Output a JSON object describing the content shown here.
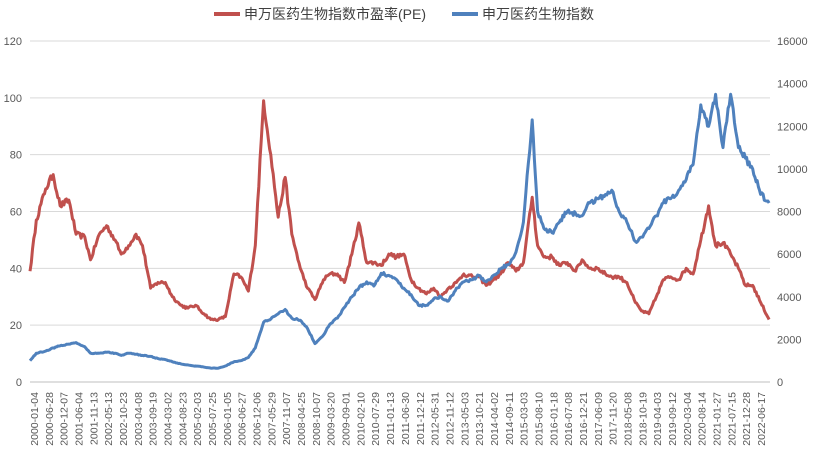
{
  "chart_data": {
    "type": "line",
    "title": "",
    "xlabel": "",
    "ylabel_left": "",
    "ylabel_right": "",
    "ylim_left": [
      0,
      120
    ],
    "yticks_left": [
      "0",
      "20",
      "40",
      "60",
      "80",
      "100",
      "120"
    ],
    "ylim_right": [
      0,
      16000
    ],
    "yticks_right": [
      "0",
      "2000",
      "4000",
      "6000",
      "8000",
      "10000",
      "12000",
      "14000",
      "16000"
    ],
    "grid": "horizontal",
    "legend_position": "top",
    "x_tick_labels": [
      "2000-01-04",
      "2000-06-28",
      "2000-12-07",
      "2001-06-04",
      "2001-11-13",
      "2002-05-13",
      "2002-10-23",
      "2003-04-08",
      "2003-09-19",
      "2004-03-02",
      "2004-08-23",
      "2005-02-03",
      "2005-07-25",
      "2006-01-05",
      "2006-06-27",
      "2006-12-06",
      "2007-05-29",
      "2007-11-07",
      "2008-04-25",
      "2008-10-07",
      "2009-03-20",
      "2009-09-01",
      "2010-02-10",
      "2010-07-29",
      "2011-01-13",
      "2011-06-30",
      "2011-12-12",
      "2012-05-31",
      "2012-11-12",
      "2013-05-03",
      "2013-10-21",
      "2014-04-02",
      "2014-09-11",
      "2015-03-03",
      "2015-08-10",
      "2016-01-18",
      "2016-07-08",
      "2016-12-21",
      "2017-06-09",
      "2017-11-20",
      "2018-05-08",
      "2018-10-19",
      "2019-04-03",
      "2019-09-12",
      "2020-03-04",
      "2020-08-14",
      "2021-01-27",
      "2021-07-15",
      "2021-12-28",
      "2022-06-17"
    ],
    "series": [
      {
        "name": "申万医药生物指数市盈率(PE)",
        "axis": "left",
        "color": "#C0504D",
        "x": [
          "2000-01-04",
          "2000-03-15",
          "2000-06-28",
          "2000-09-20",
          "2000-12-07",
          "2001-03-15",
          "2001-06-04",
          "2001-09-10",
          "2001-11-13",
          "2002-02-20",
          "2002-05-13",
          "2002-08-15",
          "2002-10-23",
          "2003-01-15",
          "2003-04-08",
          "2003-06-20",
          "2003-09-19",
          "2003-12-10",
          "2004-03-02",
          "2004-05-20",
          "2004-08-23",
          "2004-11-10",
          "2005-02-03",
          "2005-05-10",
          "2005-07-25",
          "2005-10-20",
          "2006-01-05",
          "2006-04-10",
          "2006-06-27",
          "2006-09-20",
          "2006-12-06",
          "2007-03-10",
          "2007-05-29",
          "2007-08-20",
          "2007-11-07",
          "2008-01-20",
          "2008-04-25",
          "2008-07-15",
          "2008-10-07",
          "2009-01-10",
          "2009-03-20",
          "2009-06-15",
          "2009-09-01",
          "2009-11-25",
          "2010-02-10",
          "2010-05-10",
          "2010-07-29",
          "2010-10-20",
          "2011-01-13",
          "2011-04-10",
          "2011-06-30",
          "2011-09-20",
          "2011-12-12",
          "2012-03-10",
          "2012-05-31",
          "2012-08-20",
          "2012-11-12",
          "2013-02-10",
          "2013-05-03",
          "2013-08-10",
          "2013-10-21",
          "2014-01-10",
          "2014-04-02",
          "2014-06-20",
          "2014-09-11",
          "2014-12-10",
          "2015-03-03",
          "2015-06-10",
          "2015-08-10",
          "2015-10-20",
          "2016-01-18",
          "2016-04-10",
          "2016-07-08",
          "2016-10-10",
          "2016-12-21",
          "2017-03-15",
          "2017-06-09",
          "2017-09-10",
          "2017-11-20",
          "2018-02-10",
          "2018-05-08",
          "2018-08-10",
          "2018-10-19",
          "2019-01-10",
          "2019-04-03",
          "2019-06-20",
          "2019-09-12",
          "2019-12-10",
          "2020-03-04",
          "2020-05-20",
          "2020-08-14",
          "2020-11-10",
          "2021-01-27",
          "2021-04-20",
          "2021-07-15",
          "2021-10-10",
          "2021-12-28",
          "2022-03-20",
          "2022-06-17",
          "2022-09-20"
        ],
        "values": [
          39,
          57,
          68,
          73,
          62,
          64,
          52,
          51,
          43,
          52,
          55,
          50,
          45,
          48,
          52,
          48,
          33,
          35,
          35,
          30,
          27,
          26,
          27,
          24,
          22,
          22,
          23,
          38,
          37,
          32,
          48,
          99,
          80,
          58,
          72,
          52,
          40,
          33,
          29,
          36,
          38,
          38,
          35,
          45,
          56,
          42,
          42,
          41,
          45,
          44,
          45,
          36,
          33,
          31,
          33,
          30,
          33,
          35,
          38,
          37,
          37,
          34,
          36,
          38,
          42,
          39,
          42,
          65,
          48,
          44,
          44,
          41,
          42,
          39,
          43,
          40,
          40,
          38,
          37,
          37,
          35,
          28,
          25,
          24,
          30,
          36,
          37,
          36,
          40,
          38,
          50,
          62,
          48,
          49,
          45,
          40,
          34,
          34,
          28,
          22
        ]
      },
      {
        "name": "申万医药生物指数",
        "axis": "right",
        "color": "#4F81BD",
        "x": [
          "2000-01-04",
          "2000-03-15",
          "2000-06-28",
          "2000-09-20",
          "2000-12-07",
          "2001-03-15",
          "2001-06-04",
          "2001-09-10",
          "2001-11-13",
          "2002-02-20",
          "2002-05-13",
          "2002-08-15",
          "2002-10-23",
          "2003-01-15",
          "2003-04-08",
          "2003-06-20",
          "2003-09-19",
          "2003-12-10",
          "2004-03-02",
          "2004-05-20",
          "2004-08-23",
          "2004-11-10",
          "2005-02-03",
          "2005-05-10",
          "2005-07-25",
          "2005-10-20",
          "2006-01-05",
          "2006-04-10",
          "2006-06-27",
          "2006-09-20",
          "2006-12-06",
          "2007-03-10",
          "2007-05-29",
          "2007-08-20",
          "2007-11-07",
          "2008-01-20",
          "2008-04-25",
          "2008-07-15",
          "2008-10-07",
          "2009-01-10",
          "2009-03-20",
          "2009-06-15",
          "2009-09-01",
          "2009-11-25",
          "2010-02-10",
          "2010-05-10",
          "2010-07-29",
          "2010-10-20",
          "2011-01-13",
          "2011-04-10",
          "2011-06-30",
          "2011-09-20",
          "2011-12-12",
          "2012-03-10",
          "2012-05-31",
          "2012-08-20",
          "2012-11-12",
          "2013-02-10",
          "2013-05-03",
          "2013-08-10",
          "2013-10-21",
          "2014-01-10",
          "2014-04-02",
          "2014-06-20",
          "2014-09-11",
          "2014-12-10",
          "2015-03-03",
          "2015-06-10",
          "2015-08-10",
          "2015-10-20",
          "2016-01-18",
          "2016-04-10",
          "2016-07-08",
          "2016-10-10",
          "2016-12-21",
          "2017-03-15",
          "2017-06-09",
          "2017-09-10",
          "2017-11-20",
          "2018-02-10",
          "2018-05-08",
          "2018-08-10",
          "2018-10-19",
          "2019-01-10",
          "2019-04-03",
          "2019-06-20",
          "2019-09-12",
          "2019-12-10",
          "2020-03-04",
          "2020-05-20",
          "2020-08-14",
          "2020-11-10",
          "2021-01-27",
          "2021-04-20",
          "2021-07-15",
          "2021-10-10",
          "2021-12-28",
          "2022-03-20",
          "2022-06-17",
          "2022-09-20"
        ],
        "values": [
          1000,
          1350,
          1450,
          1600,
          1700,
          1780,
          1850,
          1650,
          1350,
          1350,
          1400,
          1350,
          1250,
          1350,
          1300,
          1250,
          1200,
          1100,
          1050,
          950,
          850,
          800,
          750,
          700,
          650,
          650,
          750,
          950,
          1000,
          1150,
          1600,
          2800,
          2950,
          3200,
          3400,
          3000,
          2900,
          2500,
          1800,
          2200,
          2700,
          3000,
          3500,
          4000,
          4400,
          4700,
          4500,
          5100,
          5000,
          4800,
          4400,
          4100,
          3600,
          3600,
          3900,
          4000,
          3800,
          4400,
          4700,
          4800,
          5000,
          4700,
          5000,
          5300,
          5500,
          6100,
          7500,
          12300,
          8000,
          7200,
          7000,
          7500,
          8000,
          7900,
          7800,
          8400,
          8600,
          8800,
          9000,
          8000,
          7500,
          6600,
          6800,
          7200,
          7800,
          8400,
          8600,
          9000,
          9500,
          10200,
          13000,
          12000,
          13500,
          11000,
          13500,
          11000,
          10500,
          10000,
          8800,
          8400
        ]
      }
    ]
  }
}
